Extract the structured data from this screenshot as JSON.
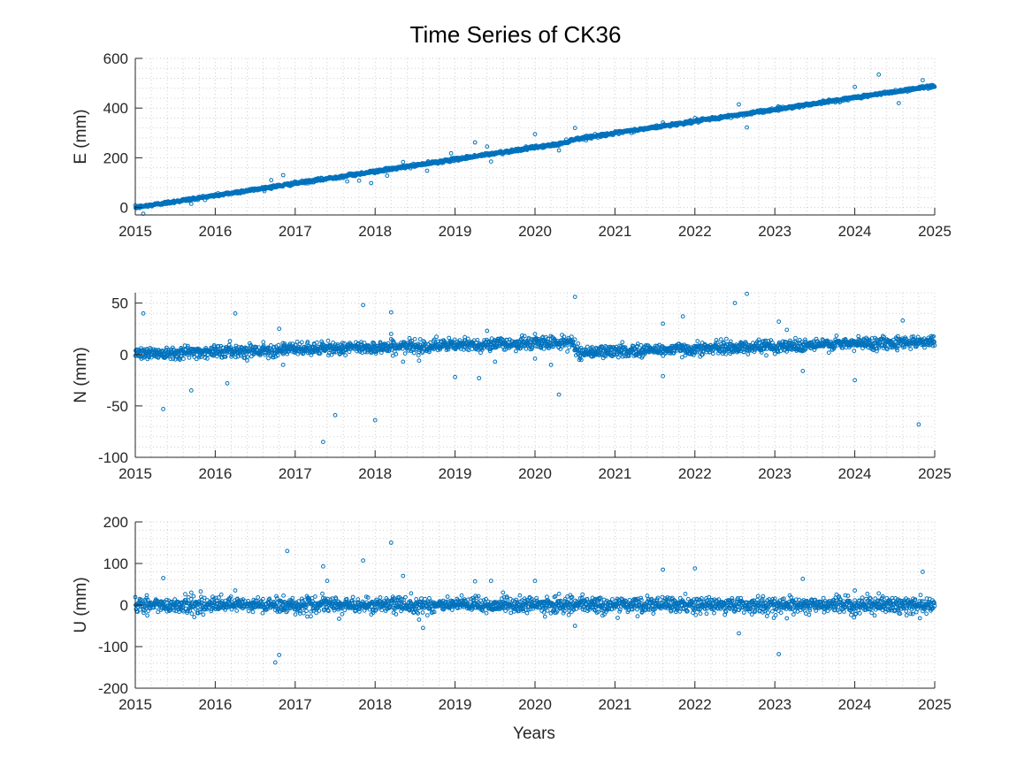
{
  "figure": {
    "title": "Time Series of CK36",
    "xlabel": "Years"
  },
  "chart_data": [
    {
      "type": "scatter",
      "ylabel": "E (mm)",
      "xlim": [
        2015,
        2025
      ],
      "ylim": [
        -30,
        600
      ],
      "xticks": [
        2015,
        2016,
        2017,
        2018,
        2019,
        2020,
        2021,
        2022,
        2023,
        2024,
        2025
      ],
      "yticks": [
        0,
        200,
        400,
        600
      ],
      "grid": "on (minor dotted)",
      "marker_color": "#0072BD",
      "trend": [
        [
          2015.0,
          0
        ],
        [
          2020.0,
          242
        ],
        [
          2020.3,
          255
        ],
        [
          2020.5,
          275
        ],
        [
          2025.0,
          490
        ]
      ],
      "noise_mm": 3,
      "outliers": [
        [
          2015.1,
          -25
        ],
        [
          2015.7,
          15
        ],
        [
          2016.7,
          110
        ],
        [
          2016.85,
          130
        ],
        [
          2017.65,
          105
        ],
        [
          2017.8,
          108
        ],
        [
          2017.95,
          98
        ],
        [
          2018.15,
          128
        ],
        [
          2018.35,
          183
        ],
        [
          2018.65,
          148
        ],
        [
          2018.95,
          218
        ],
        [
          2019.25,
          262
        ],
        [
          2019.4,
          245
        ],
        [
          2019.45,
          185
        ],
        [
          2020.0,
          295
        ],
        [
          2020.3,
          230
        ],
        [
          2020.5,
          320
        ],
        [
          2021.6,
          342
        ],
        [
          2022.0,
          360
        ],
        [
          2022.55,
          415
        ],
        [
          2022.65,
          322
        ],
        [
          2024.0,
          485
        ],
        [
          2024.3,
          535
        ],
        [
          2024.55,
          420
        ],
        [
          2024.85,
          512
        ]
      ]
    },
    {
      "type": "scatter",
      "ylabel": "N (mm)",
      "xlim": [
        2015,
        2025
      ],
      "ylim": [
        -100,
        60
      ],
      "xticks": [
        2015,
        2016,
        2017,
        2018,
        2019,
        2020,
        2021,
        2022,
        2023,
        2024,
        2025
      ],
      "yticks": [
        -100,
        -50,
        0,
        50
      ],
      "grid": "on (minor dotted)",
      "marker_color": "#0072BD",
      "trend": [
        [
          2015.0,
          1
        ],
        [
          2020.45,
          12
        ],
        [
          2020.55,
          2
        ],
        [
          2025.0,
          13
        ]
      ],
      "noise_mm": 3,
      "outliers": [
        [
          2015.1,
          40
        ],
        [
          2015.35,
          -53
        ],
        [
          2015.7,
          -35
        ],
        [
          2016.15,
          -28
        ],
        [
          2016.25,
          40
        ],
        [
          2016.8,
          25
        ],
        [
          2016.85,
          -10
        ],
        [
          2017.35,
          -85
        ],
        [
          2017.5,
          -59
        ],
        [
          2017.85,
          48
        ],
        [
          2018.0,
          -64
        ],
        [
          2018.2,
          20
        ],
        [
          2018.2,
          41
        ],
        [
          2018.35,
          -7
        ],
        [
          2018.55,
          -6
        ],
        [
          2019.0,
          -22
        ],
        [
          2019.3,
          -23
        ],
        [
          2019.4,
          23
        ],
        [
          2019.5,
          -7
        ],
        [
          2020.0,
          -4
        ],
        [
          2020.0,
          20
        ],
        [
          2020.2,
          -10
        ],
        [
          2020.3,
          -39
        ],
        [
          2020.5,
          56
        ],
        [
          2021.6,
          30
        ],
        [
          2021.6,
          -21
        ],
        [
          2021.85,
          37
        ],
        [
          2022.5,
          50
        ],
        [
          2022.65,
          59
        ],
        [
          2023.05,
          32
        ],
        [
          2023.15,
          24
        ],
        [
          2023.35,
          -16
        ],
        [
          2024.0,
          -25
        ],
        [
          2024.6,
          33
        ],
        [
          2024.8,
          -68
        ]
      ]
    },
    {
      "type": "scatter",
      "ylabel": "U (mm)",
      "xlim": [
        2015,
        2025
      ],
      "ylim": [
        -200,
        200
      ],
      "xticks": [
        2015,
        2016,
        2017,
        2018,
        2019,
        2020,
        2021,
        2022,
        2023,
        2024,
        2025
      ],
      "yticks": [
        -200,
        -100,
        0,
        100,
        200
      ],
      "grid": "on (minor dotted)",
      "marker_color": "#0072BD",
      "trend": [
        [
          2015.0,
          0
        ],
        [
          2025.0,
          0
        ]
      ],
      "noise_mm": 9,
      "outliers": [
        [
          2015.15,
          -25
        ],
        [
          2015.35,
          65
        ],
        [
          2015.7,
          30
        ],
        [
          2016.25,
          35
        ],
        [
          2016.75,
          -138
        ],
        [
          2016.8,
          -120
        ],
        [
          2016.9,
          130
        ],
        [
          2017.35,
          93
        ],
        [
          2017.4,
          58
        ],
        [
          2017.55,
          -33
        ],
        [
          2017.85,
          107
        ],
        [
          2018.2,
          150
        ],
        [
          2018.35,
          70
        ],
        [
          2018.45,
          28
        ],
        [
          2018.55,
          -35
        ],
        [
          2018.6,
          -55
        ],
        [
          2019.25,
          57
        ],
        [
          2019.45,
          58
        ],
        [
          2019.6,
          30
        ],
        [
          2020.0,
          58
        ],
        [
          2020.3,
          27
        ],
        [
          2020.5,
          -50
        ],
        [
          2021.6,
          85
        ],
        [
          2022.0,
          88
        ],
        [
          2022.55,
          -68
        ],
        [
          2023.05,
          -118
        ],
        [
          2023.15,
          -32
        ],
        [
          2023.35,
          63
        ],
        [
          2024.0,
          35
        ],
        [
          2024.3,
          28
        ],
        [
          2024.85,
          80
        ]
      ]
    }
  ]
}
